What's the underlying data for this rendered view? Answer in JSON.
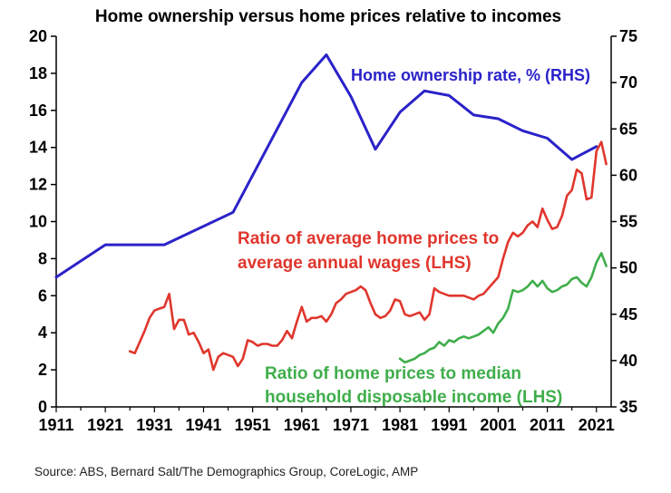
{
  "chart_data": {
    "type": "line",
    "title": "Home ownership versus home prices relative to incomes",
    "source": "Source: ABS, Bernard Salt/The Demographics Group, CoreLogic, AMP",
    "xlim": [
      1911,
      2024
    ],
    "x_ticks": [
      "1911",
      "1921",
      "1931",
      "1941",
      "1951",
      "1961",
      "1971",
      "1981",
      "1991",
      "2001",
      "2011",
      "2021"
    ],
    "left_axis": {
      "ylim": [
        0,
        20
      ],
      "ticks": [
        "0",
        "2",
        "4",
        "6",
        "8",
        "10",
        "12",
        "14",
        "16",
        "18",
        "20"
      ]
    },
    "right_axis": {
      "ylim": [
        35,
        75
      ],
      "ticks": [
        "35",
        "40",
        "45",
        "50",
        "55",
        "60",
        "65",
        "70",
        "75"
      ]
    },
    "grid": false,
    "series": [
      {
        "name": "Home ownership rate, % (RHS)",
        "axis": "right",
        "color": "#2a22c8",
        "x": [
          1911,
          1921,
          1933,
          1947,
          1961,
          1966,
          1971,
          1976,
          1981,
          1986,
          1991,
          1996,
          2001,
          2006,
          2011,
          2016,
          2021
        ],
        "y": [
          49,
          52.5,
          52.5,
          56,
          70,
          73,
          68.5,
          62.8,
          66.8,
          69.1,
          68.6,
          66.5,
          66.1,
          64.8,
          64,
          61.7,
          63.1
        ]
      },
      {
        "name": "Ratio of average home prices to average annual wages (LHS)",
        "axis": "left",
        "color": "#e0362d",
        "x": [
          1926,
          1927,
          1928,
          1929,
          1930,
          1931,
          1932,
          1933,
          1934,
          1935,
          1936,
          1937,
          1938,
          1939,
          1940,
          1941,
          1942,
          1943,
          1944,
          1945,
          1946,
          1947,
          1948,
          1949,
          1950,
          1951,
          1952,
          1953,
          1954,
          1955,
          1956,
          1957,
          1958,
          1959,
          1960,
          1961,
          1962,
          1963,
          1964,
          1965,
          1966,
          1967,
          1968,
          1969,
          1970,
          1971,
          1972,
          1973,
          1974,
          1975,
          1976,
          1977,
          1978,
          1979,
          1980,
          1981,
          1982,
          1983,
          1984,
          1985,
          1986,
          1987,
          1988,
          1989,
          1990,
          1991,
          1992,
          1993,
          1994,
          1995,
          1996,
          1997,
          1998,
          1999,
          2000,
          2001,
          2002,
          2003,
          2004,
          2005,
          2006,
          2007,
          2008,
          2009,
          2010,
          2011,
          2012,
          2013,
          2014,
          2015,
          2016,
          2017,
          2018,
          2019,
          2020,
          2021,
          2022,
          2023
        ],
        "y": [
          3.0,
          2.9,
          3.5,
          4.1,
          4.8,
          5.2,
          5.3,
          5.4,
          6.1,
          4.2,
          4.7,
          4.7,
          3.9,
          4.0,
          3.5,
          2.9,
          3.1,
          2.0,
          2.7,
          2.9,
          2.8,
          2.7,
          2.2,
          2.6,
          3.6,
          3.5,
          3.3,
          3.4,
          3.4,
          3.3,
          3.3,
          3.6,
          4.1,
          3.7,
          4.6,
          5.4,
          4.6,
          4.8,
          4.8,
          4.9,
          4.6,
          5.0,
          5.6,
          5.8,
          6.1,
          6.2,
          6.3,
          6.5,
          6.3,
          5.6,
          5.0,
          4.8,
          4.9,
          5.2,
          5.8,
          5.7,
          5.0,
          4.9,
          5.0,
          5.1,
          4.7,
          5.0,
          6.4,
          6.2,
          6.1,
          6.0,
          6.0,
          6.0,
          6.0,
          5.9,
          5.8,
          6.0,
          6.1,
          6.4,
          6.7,
          7.0,
          8.0,
          8.9,
          9.4,
          9.2,
          9.4,
          9.8,
          10.0,
          9.7,
          10.7,
          10.1,
          9.6,
          9.7,
          10.3,
          11.4,
          11.7,
          12.8,
          12.6,
          11.2,
          11.3,
          13.8,
          14.3,
          13.1
        ]
      },
      {
        "name": "Ratio of home prices to median household disposable income (LHS)",
        "axis": "left",
        "color": "#3fae4b",
        "x": [
          1981,
          1982,
          1983,
          1984,
          1985,
          1986,
          1987,
          1988,
          1989,
          1990,
          1991,
          1992,
          1993,
          1994,
          1995,
          1996,
          1997,
          1998,
          1999,
          2000,
          2001,
          2002,
          2003,
          2004,
          2005,
          2006,
          2007,
          2008,
          2009,
          2010,
          2011,
          2012,
          2013,
          2014,
          2015,
          2016,
          2017,
          2018,
          2019,
          2020,
          2021,
          2022,
          2023
        ],
        "y": [
          2.6,
          2.4,
          2.5,
          2.6,
          2.8,
          2.9,
          3.1,
          3.2,
          3.5,
          3.3,
          3.6,
          3.5,
          3.7,
          3.8,
          3.7,
          3.8,
          3.9,
          4.1,
          4.3,
          4.0,
          4.5,
          4.8,
          5.3,
          6.3,
          6.2,
          6.3,
          6.5,
          6.8,
          6.5,
          6.8,
          6.4,
          6.2,
          6.3,
          6.5,
          6.6,
          6.9,
          7.0,
          6.7,
          6.5,
          7.0,
          7.8,
          8.3,
          7.6
        ]
      }
    ],
    "annotations": {
      "ownership": [
        "Home ownership rate, % (RHS)"
      ],
      "wages": [
        "Ratio of average home prices to",
        "average annual wages (LHS)"
      ],
      "income": [
        "Ratio of home prices to median",
        "household disposable income (LHS)"
      ]
    }
  }
}
